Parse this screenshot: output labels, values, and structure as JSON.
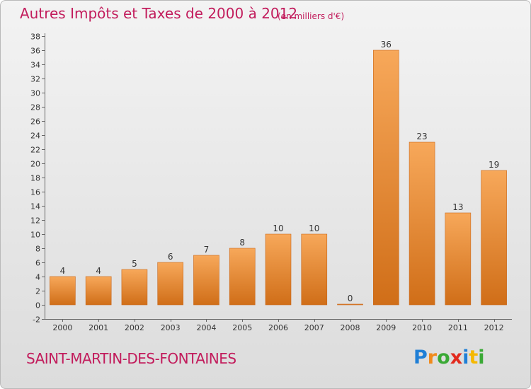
{
  "header": {
    "title": "Autres Impôts et Taxes de 2000 à 2012",
    "subtitle": "(en milliers d'€)"
  },
  "footer": {
    "commune": "SAINT-MARTIN-DES-FONTAINES",
    "logo_letters": [
      "P",
      "r",
      "o",
      "x",
      "i",
      "t",
      "i"
    ]
  },
  "colors": {
    "title": "#c21c5c",
    "bar_light": "#f7a85a",
    "bar_dark": "#d06e18"
  },
  "chart_data": {
    "type": "bar",
    "title": "Autres Impôts et Taxes de 2000 à 2012",
    "subtitle": "(en milliers d'€)",
    "categories": [
      "2000",
      "2001",
      "2002",
      "2003",
      "2004",
      "2005",
      "2006",
      "2007",
      "2008",
      "2009",
      "2010",
      "2011",
      "2012"
    ],
    "values": [
      4,
      4,
      5,
      6,
      7,
      8,
      10,
      10,
      0,
      36,
      23,
      13,
      19
    ],
    "data_labels": [
      "4",
      "4",
      "5",
      "6",
      "7",
      "8",
      "10",
      "10",
      "0",
      "36",
      "23",
      "13",
      "19"
    ],
    "ylim": [
      -2,
      38
    ],
    "yticks": [
      -2,
      0,
      2,
      4,
      6,
      8,
      10,
      12,
      14,
      16,
      18,
      20,
      22,
      24,
      26,
      28,
      30,
      32,
      34,
      36,
      38
    ],
    "grid": false
  }
}
